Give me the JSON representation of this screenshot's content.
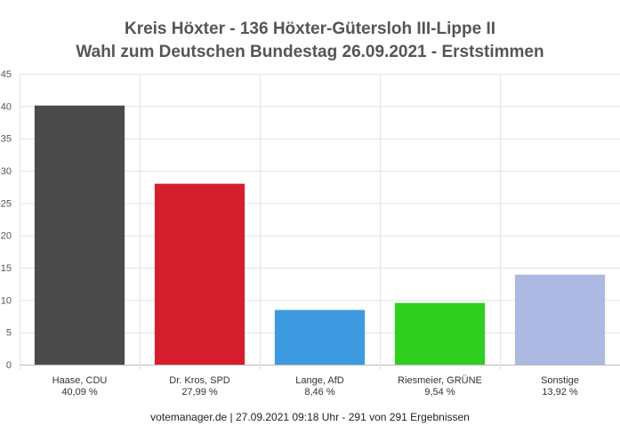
{
  "chart_data": {
    "type": "bar",
    "title": "Kreis Höxter - 136 Höxter-Gütersloh III-Lippe II",
    "subtitle": "Wahl zum Deutschen Bundestag 26.09.2021  - Erststimmen",
    "categories": [
      [
        "Haase, CDU",
        "40,09 %"
      ],
      [
        "Dr. Kros, SPD",
        "27,99 %"
      ],
      [
        "Lange, AfD",
        "8,46 %"
      ],
      [
        "Riesmeier, GRÜNE",
        "9,54 %"
      ],
      [
        "Sonstige",
        "13,92 %"
      ]
    ],
    "values": [
      40.09,
      27.99,
      8.46,
      9.54,
      13.92
    ],
    "colors": [
      "#4a4a4a",
      "#d41e2d",
      "#3d9ae0",
      "#2fce1f",
      "#aeb9e3"
    ],
    "ylim": [
      0,
      45
    ],
    "yticks": [
      0,
      5,
      10,
      15,
      20,
      25,
      30,
      35,
      40,
      45
    ],
    "xlabel": "",
    "ylabel": "",
    "grid": true,
    "legend": "none"
  },
  "footer": "votemanager.de | 27.09.2021 09:18 Uhr - 291 von 291 Ergebnissen"
}
